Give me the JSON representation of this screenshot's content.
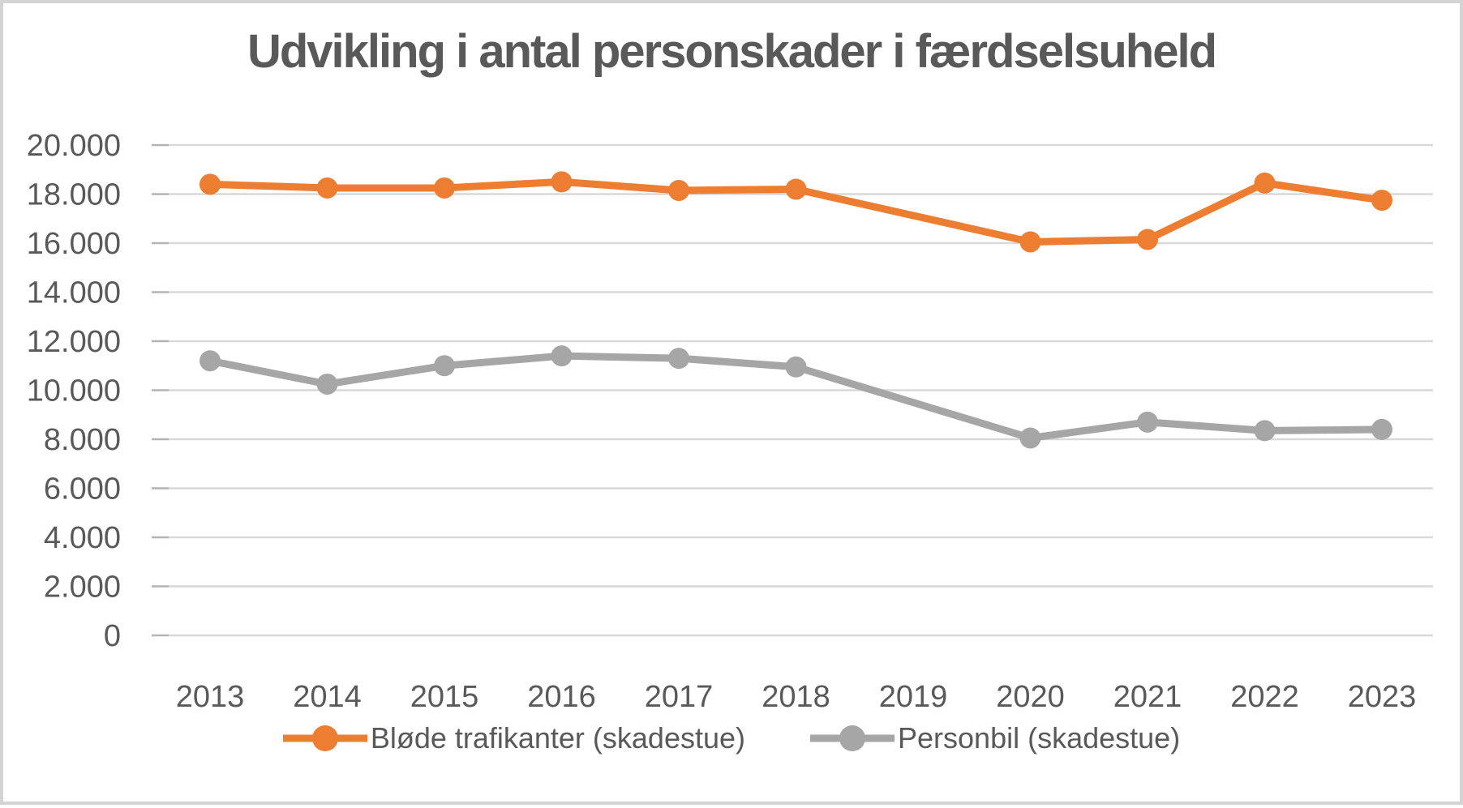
{
  "window": {
    "background": "#ffffff",
    "border_color": "#d4d4d4"
  },
  "chart_data": {
    "type": "line",
    "title": "Udvikling i antal personskader i færdselsuheld",
    "title_color": "#595959",
    "categories": [
      "2013",
      "2014",
      "2015",
      "2016",
      "2017",
      "2018",
      "2019",
      "2020",
      "2021",
      "2022",
      "2023"
    ],
    "series": [
      {
        "name": "Bløde trafikanter (skadestue)",
        "color": "#ED7D31",
        "values": [
          18400,
          18250,
          18250,
          18500,
          18150,
          18200,
          null,
          16050,
          16150,
          18450,
          17750
        ]
      },
      {
        "name": "Personbil (skadestue)",
        "color": "#A6A6A6",
        "values": [
          11200,
          10250,
          11000,
          11400,
          11300,
          10950,
          null,
          8050,
          8700,
          8350,
          8400
        ]
      }
    ],
    "ylim": [
      0,
      20000
    ],
    "ytick_step": 2000,
    "ytick_labels": [
      "0",
      "2.000",
      "4.000",
      "6.000",
      "8.000",
      "10.000",
      "12.000",
      "14.000",
      "16.000",
      "18.000",
      "20.000"
    ],
    "xlabel": "",
    "ylabel": "",
    "grid": true,
    "gridline_color": "#d9d9d9",
    "tick_mark_color": "#b3b3b3",
    "axis_label_color": "#595959",
    "legend_position": "bottom"
  }
}
